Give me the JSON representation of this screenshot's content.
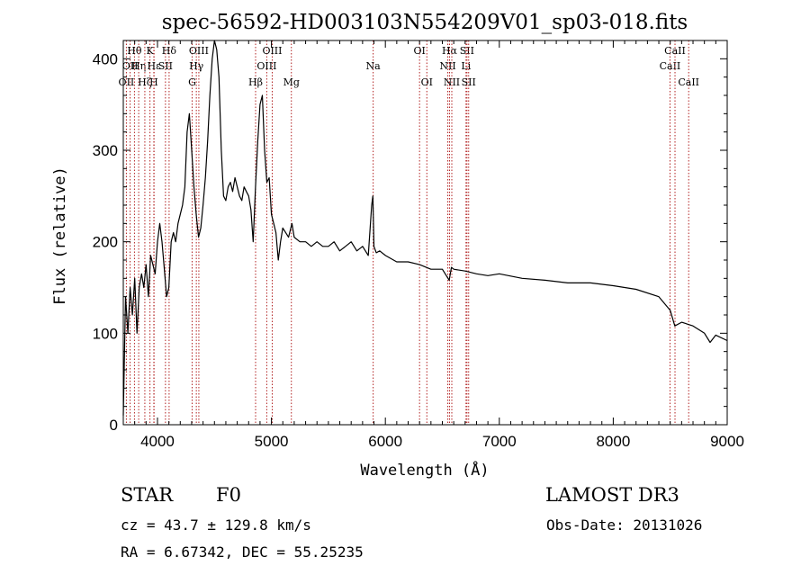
{
  "chart_data": {
    "type": "line",
    "title": "spec-56592-HD003103N554209V01_sp03-018.fits",
    "xlabel": "Wavelength (Å)",
    "ylabel": "Flux (relative)",
    "xlim": [
      3700,
      9000
    ],
    "ylim": [
      0,
      420
    ],
    "x_ticks": [
      4000,
      5000,
      6000,
      7000,
      8000,
      9000
    ],
    "y_ticks": [
      0,
      100,
      200,
      300,
      400
    ],
    "grid": false,
    "line_color": "#000000",
    "marker_color": "#b22222",
    "series": [
      {
        "x": [
          3700,
          3720,
          3740,
          3760,
          3780,
          3800,
          3820,
          3840,
          3860,
          3880,
          3900,
          3920,
          3940,
          3960,
          3980,
          4000,
          4020,
          4040,
          4060,
          4080,
          4100,
          4120,
          4140,
          4160,
          4180,
          4200,
          4220,
          4240,
          4260,
          4280,
          4300,
          4320,
          4340,
          4360,
          4380,
          4400,
          4420,
          4440,
          4460,
          4480,
          4500,
          4520,
          4540,
          4560,
          4580,
          4600,
          4620,
          4640,
          4660,
          4680,
          4700,
          4720,
          4740,
          4760,
          4780,
          4800,
          4820,
          4840,
          4860,
          4880,
          4900,
          4920,
          4940,
          4960,
          4980,
          5000,
          5020,
          5040,
          5060,
          5080,
          5100,
          5150,
          5180,
          5200,
          5250,
          5300,
          5350,
          5400,
          5450,
          5500,
          5550,
          5600,
          5650,
          5700,
          5750,
          5800,
          5850,
          5880,
          5890,
          5900,
          5920,
          5950,
          6000,
          6100,
          6200,
          6300,
          6400,
          6500,
          6560,
          6580,
          6600,
          6700,
          6800,
          6900,
          7000,
          7200,
          7400,
          7600,
          7800,
          8000,
          8200,
          8400,
          8500,
          8540,
          8600,
          8700,
          8800,
          8850,
          8900,
          9000
        ],
        "y": [
          10,
          140,
          100,
          150,
          120,
          160,
          100,
          150,
          165,
          150,
          175,
          140,
          185,
          175,
          165,
          200,
          220,
          200,
          170,
          140,
          150,
          200,
          210,
          200,
          220,
          230,
          240,
          260,
          320,
          340,
          300,
          260,
          230,
          205,
          215,
          240,
          270,
          310,
          360,
          400,
          420,
          410,
          380,
          300,
          250,
          245,
          260,
          265,
          255,
          270,
          260,
          250,
          245,
          260,
          255,
          250,
          235,
          200,
          260,
          310,
          350,
          360,
          300,
          265,
          270,
          230,
          220,
          210,
          180,
          200,
          215,
          205,
          220,
          205,
          200,
          200,
          195,
          200,
          195,
          195,
          200,
          190,
          195,
          200,
          190,
          195,
          185,
          240,
          250,
          195,
          188,
          190,
          185,
          178,
          178,
          175,
          170,
          170,
          158,
          172,
          170,
          168,
          165,
          163,
          165,
          160,
          158,
          155,
          155,
          152,
          148,
          140,
          125,
          108,
          112,
          108,
          100,
          90,
          98,
          92
        ]
      }
    ],
    "lines": [
      {
        "wl": 3727,
        "name": "OII",
        "row": 2
      },
      {
        "wl": 3760,
        "name": "OII",
        "row": 1
      },
      {
        "wl": 3798,
        "name": "Hθ",
        "row": 0
      },
      {
        "wl": 3835,
        "name": "Hη",
        "row": 1
      },
      {
        "wl": 3889,
        "name": "Hζ",
        "row": 2
      },
      {
        "wl": 3934,
        "name": "K",
        "row": 0
      },
      {
        "wl": 3968,
        "name": "H",
        "row": 2
      },
      {
        "wl": 3970,
        "name": "Hε",
        "row": 1
      },
      {
        "wl": 4070,
        "name": "SII",
        "row": 1
      },
      {
        "wl": 4102,
        "name": "Hδ",
        "row": 0
      },
      {
        "wl": 4304,
        "name": "G",
        "row": 2
      },
      {
        "wl": 4341,
        "name": "Hγ",
        "row": 1
      },
      {
        "wl": 4363,
        "name": "OIII",
        "row": 0
      },
      {
        "wl": 4861,
        "name": "Hβ",
        "row": 2
      },
      {
        "wl": 4959,
        "name": "OIII",
        "row": 1
      },
      {
        "wl": 5007,
        "name": "OIII",
        "row": 0
      },
      {
        "wl": 5175,
        "name": "Mg",
        "row": 2
      },
      {
        "wl": 5893,
        "name": "Na",
        "row": 1
      },
      {
        "wl": 6300,
        "name": "OI",
        "row": 0
      },
      {
        "wl": 6364,
        "name": "OI",
        "row": 2
      },
      {
        "wl": 6548,
        "name": "NII",
        "row": 1
      },
      {
        "wl": 6563,
        "name": "Hα",
        "row": 0
      },
      {
        "wl": 6583,
        "name": "NII",
        "row": 2
      },
      {
        "wl": 6708,
        "name": "Li",
        "row": 1
      },
      {
        "wl": 6716,
        "name": "SII",
        "row": 0
      },
      {
        "wl": 6731,
        "name": "SII",
        "row": 2
      },
      {
        "wl": 8498,
        "name": "CaII",
        "row": 1
      },
      {
        "wl": 8542,
        "name": "CaII",
        "row": 0
      },
      {
        "wl": 8662,
        "name": "CaII",
        "row": 2
      }
    ]
  },
  "footer": {
    "object_class": "STAR",
    "subclass": "F0",
    "survey": "LAMOST DR3",
    "cz": "cz = 43.7 ± 129.8 km/s",
    "obs_date": "Obs-Date: 20131026",
    "radec": "RA =   6.67342, DEC =  55.25235"
  }
}
